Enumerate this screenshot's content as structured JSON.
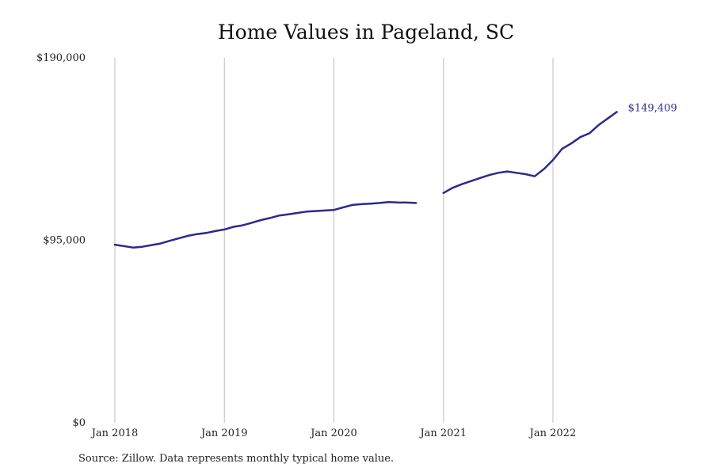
{
  "chart_data": {
    "type": "line",
    "title": "Home Values in Pageland, SC",
    "xlabel": "",
    "ylabel": "",
    "ylim": [
      0,
      190000
    ],
    "y_ticks": [
      {
        "value": 0,
        "label": "$0"
      },
      {
        "value": 95000,
        "label": "$95,000"
      },
      {
        "value": 190000,
        "label": "$190,000"
      }
    ],
    "x_range": [
      "2018-01",
      "2023-03"
    ],
    "x_ticks": [
      {
        "date": "2018-01",
        "label": "Jan 2018"
      },
      {
        "date": "2019-01",
        "label": "Jan 2019"
      },
      {
        "date": "2020-01",
        "label": "Jan 2020"
      },
      {
        "date": "2021-01",
        "label": "Jan 2021"
      },
      {
        "date": "2022-01",
        "label": "Jan 2022"
      }
    ],
    "grid": "vertical",
    "legend": "none",
    "series": [
      {
        "segments": [
          [
            [
              "2018-01",
              92700
            ],
            [
              "2018-03",
              91200
            ],
            [
              "2018-04",
              91600
            ],
            [
              "2018-05",
              92500
            ],
            [
              "2018-06",
              93300
            ],
            [
              "2018-07",
              94700
            ],
            [
              "2018-08",
              96000
            ],
            [
              "2018-09",
              97300
            ],
            [
              "2018-10",
              98200
            ],
            [
              "2018-11",
              98800
            ],
            [
              "2018-12",
              99800
            ],
            [
              "2019-01",
              100600
            ],
            [
              "2019-02",
              102000
            ],
            [
              "2019-03",
              102800
            ],
            [
              "2019-04",
              104100
            ],
            [
              "2019-05",
              105500
            ],
            [
              "2019-06",
              106600
            ],
            [
              "2019-07",
              107900
            ],
            [
              "2019-08",
              108500
            ],
            [
              "2019-09",
              109200
            ],
            [
              "2019-10",
              109900
            ],
            [
              "2019-11",
              110200
            ],
            [
              "2019-12",
              110500
            ],
            [
              "2020-01",
              110800
            ],
            [
              "2020-02",
              112100
            ],
            [
              "2020-03",
              113400
            ],
            [
              "2020-04",
              113800
            ],
            [
              "2020-05",
              114100
            ],
            [
              "2020-06",
              114400
            ],
            [
              "2020-07",
              114900
            ],
            [
              "2020-08",
              114700
            ],
            [
              "2020-09",
              114600
            ],
            [
              "2020-10",
              114400
            ]
          ],
          [
            [
              "2021-01",
              119600
            ],
            [
              "2021-02",
              122300
            ],
            [
              "2021-03",
              124200
            ],
            [
              "2021-04",
              125800
            ],
            [
              "2021-05",
              127400
            ],
            [
              "2021-06",
              128900
            ],
            [
              "2021-07",
              130100
            ],
            [
              "2021-08",
              130800
            ],
            [
              "2021-09",
              130100
            ],
            [
              "2021-10",
              129400
            ],
            [
              "2021-11",
              128300
            ],
            [
              "2021-12",
              132000
            ],
            [
              "2022-01",
              136800
            ],
            [
              "2022-02",
              142600
            ],
            [
              "2022-03",
              145400
            ],
            [
              "2022-04",
              148700
            ],
            [
              "2022-05",
              150700
            ],
            [
              "2022-06",
              155000
            ],
            [
              "2022-07",
              158400
            ],
            [
              "2022-08",
              161800
            ]
          ]
        ],
        "end_label": "$149,409"
      }
    ],
    "colors": {
      "line": "#2b2a8c",
      "grid": "#bdbdbd",
      "end_label": "#2b2a8c"
    }
  },
  "footer": {
    "source": "Source: Zillow. Data represents monthly typical home value."
  }
}
